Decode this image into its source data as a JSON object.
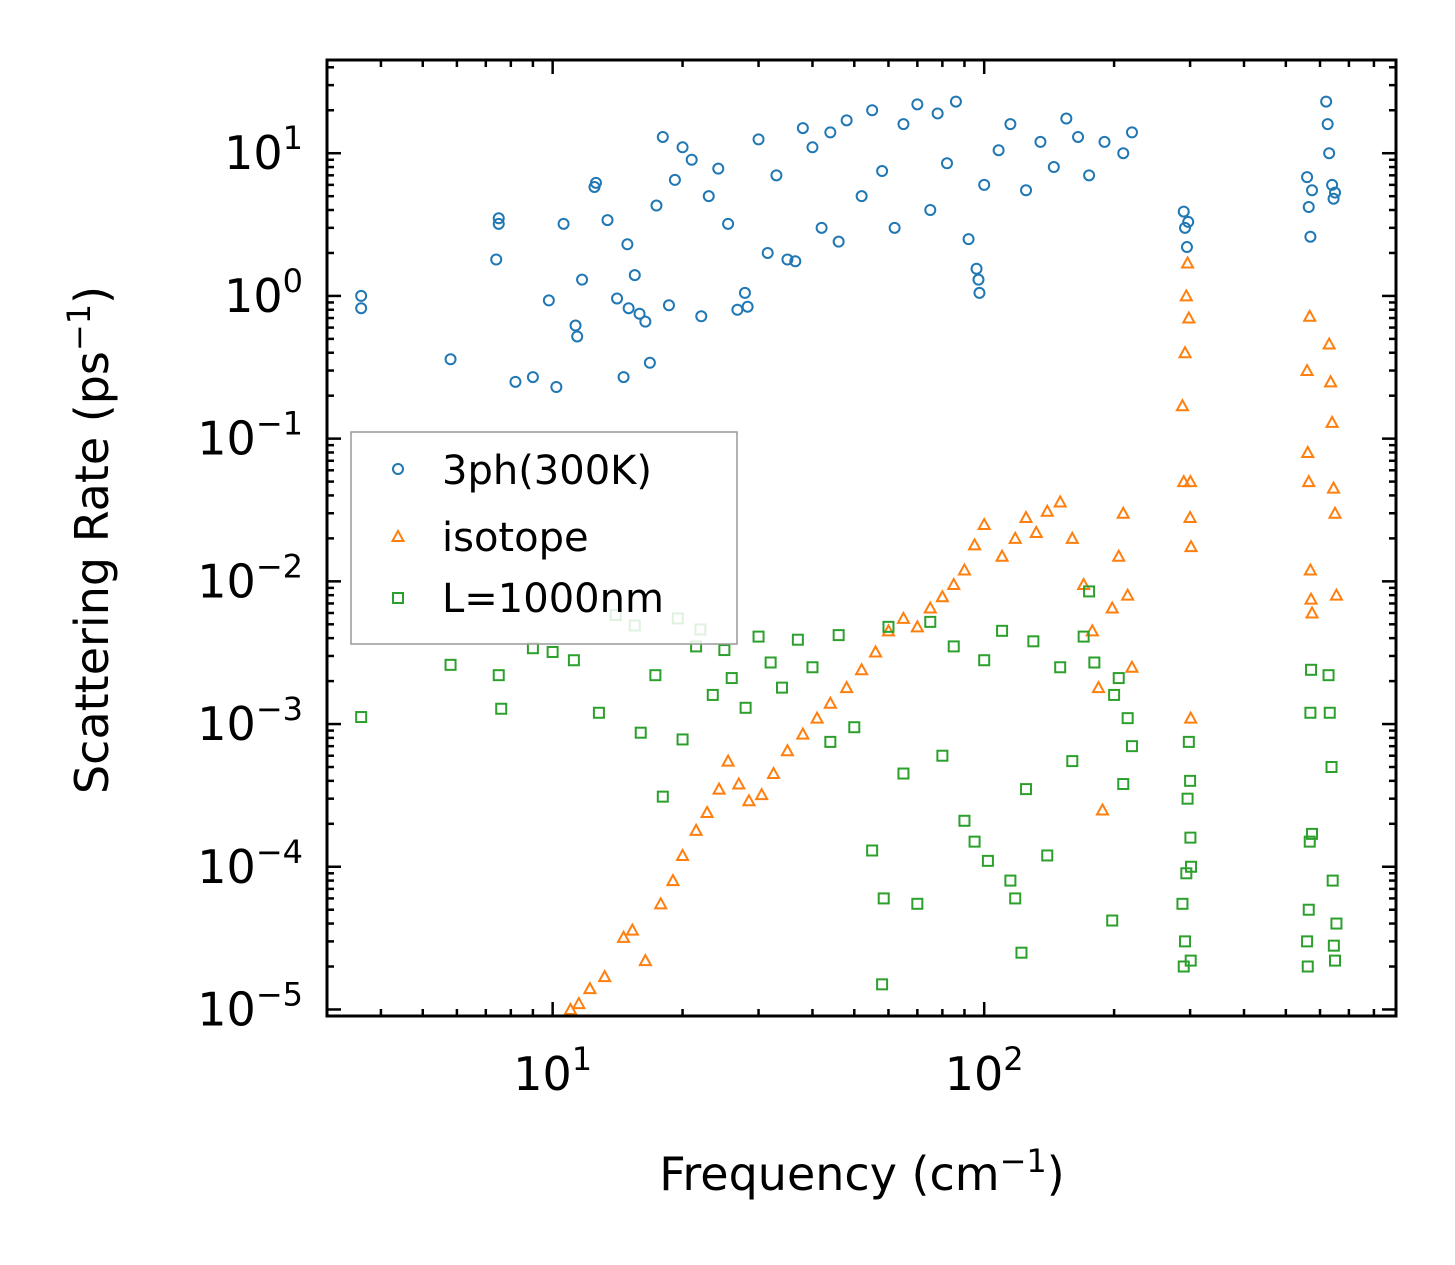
{
  "chart_data": {
    "type": "scatter",
    "title": "",
    "xscale": "log",
    "yscale": "log",
    "xlim": [
      3.0,
      900.0
    ],
    "ylim": [
      9e-06,
      45.0
    ],
    "xlabel": {
      "text": "Frequency (cm",
      "sup": "−1",
      "suffix": ")"
    },
    "ylabel": {
      "text": "Scattering Rate (ps",
      "sup": "−1",
      "suffix": ")"
    },
    "xticks": [
      {
        "base": "10",
        "exp": "1",
        "value": 10
      },
      {
        "base": "10",
        "exp": "2",
        "value": 100
      }
    ],
    "yticks": [
      {
        "base": "10",
        "exp": "1",
        "value": 10
      },
      {
        "base": "10",
        "exp": "0",
        "value": 1
      },
      {
        "base": "10",
        "exp": "−1",
        "value": 0.1
      },
      {
        "base": "10",
        "exp": "−2",
        "value": 0.01
      },
      {
        "base": "10",
        "exp": "−3",
        "value": 0.001
      },
      {
        "base": "10",
        "exp": "−4",
        "value": 0.0001
      },
      {
        "base": "10",
        "exp": "−5",
        "value": 1e-05
      }
    ],
    "legend_position": "center-left",
    "series": [
      {
        "name": "3ph(300K)",
        "marker": "circle",
        "color": "#1f77b4",
        "points": [
          [
            3.6,
            1.0
          ],
          [
            3.6,
            0.82
          ],
          [
            5.8,
            0.36
          ],
          [
            7.4,
            1.8
          ],
          [
            7.5,
            3.5
          ],
          [
            7.5,
            3.2
          ],
          [
            8.2,
            0.25
          ],
          [
            9.0,
            0.27
          ],
          [
            9.8,
            0.93
          ],
          [
            10.2,
            0.23
          ],
          [
            10.6,
            3.2
          ],
          [
            11.3,
            0.62
          ],
          [
            11.4,
            0.52
          ],
          [
            11.7,
            1.3
          ],
          [
            12.5,
            5.8
          ],
          [
            12.6,
            6.2
          ],
          [
            13.4,
            3.4
          ],
          [
            14.1,
            0.96
          ],
          [
            14.6,
            0.27
          ],
          [
            14.9,
            2.3
          ],
          [
            15.0,
            0.82
          ],
          [
            15.5,
            1.4
          ],
          [
            15.9,
            0.75
          ],
          [
            16.4,
            0.66
          ],
          [
            16.8,
            0.34
          ],
          [
            17.4,
            4.3
          ],
          [
            18.0,
            13.0
          ],
          [
            18.6,
            0.86
          ],
          [
            19.2,
            6.5
          ],
          [
            20.0,
            11.0
          ],
          [
            21.0,
            9.0
          ],
          [
            22.1,
            0.72
          ],
          [
            23.0,
            5.0
          ],
          [
            24.2,
            7.8
          ],
          [
            25.5,
            3.2
          ],
          [
            26.8,
            0.8
          ],
          [
            27.9,
            1.05
          ],
          [
            28.3,
            0.84
          ],
          [
            30.0,
            12.5
          ],
          [
            31.5,
            2.0
          ],
          [
            33.0,
            7.0
          ],
          [
            35.0,
            1.8
          ],
          [
            36.5,
            1.75
          ],
          [
            38.0,
            15.0
          ],
          [
            40.0,
            11.0
          ],
          [
            42.0,
            3.0
          ],
          [
            44.0,
            14.0
          ],
          [
            46.0,
            2.4
          ],
          [
            48.0,
            17.0
          ],
          [
            52.0,
            5.0
          ],
          [
            55.0,
            20.0
          ],
          [
            58.0,
            7.5
          ],
          [
            62.0,
            3.0
          ],
          [
            65.0,
            16.0
          ],
          [
            70.0,
            22.0
          ],
          [
            75.0,
            4.0
          ],
          [
            78.0,
            19.0
          ],
          [
            82.0,
            8.5
          ],
          [
            86.0,
            23.0
          ],
          [
            92.0,
            2.5
          ],
          [
            96.0,
            1.55
          ],
          [
            97.0,
            1.3
          ],
          [
            97.5,
            1.05
          ],
          [
            100.0,
            6.0
          ],
          [
            108.0,
            10.5
          ],
          [
            115.0,
            16.0
          ],
          [
            125.0,
            5.5
          ],
          [
            135.0,
            12.0
          ],
          [
            145.0,
            8.0
          ],
          [
            155.0,
            17.5
          ],
          [
            165.0,
            13.0
          ],
          [
            175.0,
            7.0
          ],
          [
            190.0,
            12.0
          ],
          [
            210.0,
            10.0
          ],
          [
            220.0,
            14.0
          ],
          [
            290.0,
            3.9
          ],
          [
            292.0,
            3.0
          ],
          [
            295.0,
            2.2
          ],
          [
            297.0,
            3.3
          ],
          [
            560.0,
            6.8
          ],
          [
            565.0,
            4.2
          ],
          [
            570.0,
            2.6
          ],
          [
            575.0,
            5.5
          ],
          [
            620.0,
            23.0
          ],
          [
            625.0,
            16.0
          ],
          [
            630.0,
            10.0
          ],
          [
            640.0,
            6.0
          ],
          [
            645.0,
            4.8
          ],
          [
            650.0,
            5.3
          ]
        ]
      },
      {
        "name": "isotope",
        "marker": "triangle",
        "color": "#ff7f0e",
        "points": [
          [
            11.0,
            1e-05
          ],
          [
            11.5,
            1.1e-05
          ],
          [
            12.2,
            1.4e-05
          ],
          [
            13.2,
            1.7e-05
          ],
          [
            14.6,
            3.2e-05
          ],
          [
            15.3,
            3.6e-05
          ],
          [
            16.4,
            2.2e-05
          ],
          [
            17.8,
            5.5e-05
          ],
          [
            19.0,
            8e-05
          ],
          [
            20.0,
            0.00012
          ],
          [
            21.5,
            0.00018
          ],
          [
            22.8,
            0.00024
          ],
          [
            24.3,
            0.00035
          ],
          [
            25.5,
            0.00055
          ],
          [
            27.0,
            0.00038
          ],
          [
            28.5,
            0.00029
          ],
          [
            30.5,
            0.00032
          ],
          [
            32.5,
            0.00045
          ],
          [
            35.0,
            0.00065
          ],
          [
            38.0,
            0.00085
          ],
          [
            41.0,
            0.0011
          ],
          [
            44.0,
            0.0014
          ],
          [
            48.0,
            0.0018
          ],
          [
            52.0,
            0.0024
          ],
          [
            56.0,
            0.0032
          ],
          [
            60.0,
            0.0045
          ],
          [
            65.0,
            0.0055
          ],
          [
            70.0,
            0.0048
          ],
          [
            75.0,
            0.0065
          ],
          [
            80.0,
            0.0078
          ],
          [
            85.0,
            0.0095
          ],
          [
            90.0,
            0.012
          ],
          [
            95.0,
            0.018
          ],
          [
            100.0,
            0.025
          ],
          [
            110.0,
            0.015
          ],
          [
            118.0,
            0.02
          ],
          [
            125.0,
            0.028
          ],
          [
            132.0,
            0.022
          ],
          [
            140.0,
            0.031
          ],
          [
            150.0,
            0.036
          ],
          [
            160.0,
            0.02
          ],
          [
            170.0,
            0.0095
          ],
          [
            178.0,
            0.0045
          ],
          [
            184.0,
            0.0018
          ],
          [
            188.0,
            0.00025
          ],
          [
            198.0,
            0.0065
          ],
          [
            205.0,
            0.015
          ],
          [
            210.0,
            0.03
          ],
          [
            215.0,
            0.008
          ],
          [
            220.0,
            0.0025
          ],
          [
            288.0,
            0.17
          ],
          [
            290.0,
            0.05
          ],
          [
            292.0,
            0.4
          ],
          [
            294.0,
            1.0
          ],
          [
            296.0,
            1.7
          ],
          [
            298.0,
            0.7
          ],
          [
            300.0,
            0.028
          ],
          [
            300.5,
            0.05
          ],
          [
            301.0,
            0.0011
          ],
          [
            301.5,
            0.0175
          ],
          [
            560.0,
            0.3
          ],
          [
            562.0,
            0.08
          ],
          [
            565.0,
            0.05
          ],
          [
            568.0,
            0.72
          ],
          [
            570.0,
            0.012
          ],
          [
            572.0,
            0.0075
          ],
          [
            575.0,
            0.006
          ],
          [
            630.0,
            0.46
          ],
          [
            635.0,
            0.25
          ],
          [
            640.0,
            0.13
          ],
          [
            645.0,
            0.045
          ],
          [
            650.0,
            0.03
          ],
          [
            655.0,
            0.008
          ]
        ]
      },
      {
        "name": "L=1000nm",
        "marker": "square",
        "color": "#2ca02c",
        "points": [
          [
            3.6,
            0.00112
          ],
          [
            5.8,
            0.0026
          ],
          [
            7.5,
            0.0022
          ],
          [
            7.6,
            0.00128
          ],
          [
            9.0,
            0.0034
          ],
          [
            10.0,
            0.0032
          ],
          [
            11.2,
            0.0028
          ],
          [
            12.8,
            0.0012
          ],
          [
            14.0,
            0.0058
          ],
          [
            15.5,
            0.0049
          ],
          [
            16.0,
            0.00087
          ],
          [
            17.3,
            0.0022
          ],
          [
            18.0,
            0.00031
          ],
          [
            19.5,
            0.0055
          ],
          [
            20.0,
            0.00078
          ],
          [
            21.5,
            0.0035
          ],
          [
            22.0,
            0.0046
          ],
          [
            23.5,
            0.0016
          ],
          [
            25.0,
            0.0033
          ],
          [
            26.0,
            0.0021
          ],
          [
            28.0,
            0.0013
          ],
          [
            30.0,
            0.0041
          ],
          [
            32.0,
            0.0027
          ],
          [
            34.0,
            0.0018
          ],
          [
            37.0,
            0.0039
          ],
          [
            40.0,
            0.0025
          ],
          [
            44.0,
            0.00075
          ],
          [
            46.0,
            0.0042
          ],
          [
            50.0,
            0.00095
          ],
          [
            55.0,
            0.00013
          ],
          [
            58.0,
            1.5e-05
          ],
          [
            58.5,
            6e-05
          ],
          [
            60.0,
            0.0048
          ],
          [
            65.0,
            0.00045
          ],
          [
            70.0,
            5.5e-05
          ],
          [
            75.0,
            0.0052
          ],
          [
            80.0,
            0.0006
          ],
          [
            85.0,
            0.0035
          ],
          [
            90.0,
            0.00021
          ],
          [
            95.0,
            0.00015
          ],
          [
            100.0,
            0.0028
          ],
          [
            102.0,
            0.00011
          ],
          [
            110.0,
            0.0045
          ],
          [
            115.0,
            8e-05
          ],
          [
            118.0,
            6e-05
          ],
          [
            122.0,
            2.5e-05
          ],
          [
            125.0,
            0.00035
          ],
          [
            130.0,
            0.0038
          ],
          [
            140.0,
            0.00012
          ],
          [
            150.0,
            0.0025
          ],
          [
            160.0,
            0.00055
          ],
          [
            170.0,
            0.0041
          ],
          [
            175.0,
            0.0085
          ],
          [
            180.0,
            0.0027
          ],
          [
            198.0,
            4.2e-05
          ],
          [
            200.0,
            0.0016
          ],
          [
            205.0,
            0.0021
          ],
          [
            210.0,
            0.00038
          ],
          [
            215.0,
            0.0011
          ],
          [
            220.0,
            0.0007
          ],
          [
            288.0,
            5.5e-05
          ],
          [
            290.0,
            2e-05
          ],
          [
            292.0,
            3e-05
          ],
          [
            294.0,
            9e-05
          ],
          [
            296.0,
            0.0003
          ],
          [
            298.0,
            0.00075
          ],
          [
            300.0,
            0.0004
          ],
          [
            300.5,
            0.00016
          ],
          [
            301.0,
            2.2e-05
          ],
          [
            301.5,
            0.0001
          ],
          [
            560.0,
            3e-05
          ],
          [
            562.0,
            2e-05
          ],
          [
            565.0,
            5e-05
          ],
          [
            568.0,
            0.00015
          ],
          [
            570.0,
            0.0012
          ],
          [
            572.0,
            0.0024
          ],
          [
            575.0,
            0.00017
          ],
          [
            628.0,
            0.0022
          ],
          [
            632.0,
            0.0012
          ],
          [
            638.0,
            0.0005
          ],
          [
            642.0,
            8e-05
          ],
          [
            646.0,
            2.8e-05
          ],
          [
            650.0,
            2.2e-05
          ],
          [
            655.0,
            4e-05
          ]
        ]
      }
    ]
  }
}
